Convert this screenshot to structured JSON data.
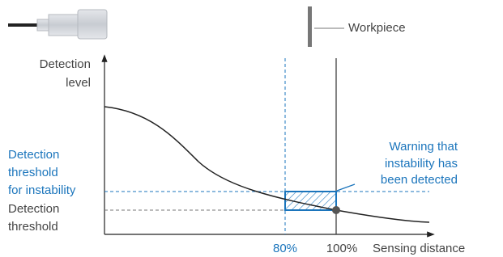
{
  "labels": {
    "workpiece": "Workpiece",
    "y_axis": [
      "Detection",
      "level"
    ],
    "instability_threshold": [
      "Detection",
      "threshold",
      "for instability"
    ],
    "threshold": [
      "Detection",
      "threshold"
    ],
    "warning": [
      "Warning that",
      "instability has",
      "been detected"
    ],
    "x_80": "80%",
    "x_100": "100%",
    "x_axis": "Sensing distance"
  }
}
